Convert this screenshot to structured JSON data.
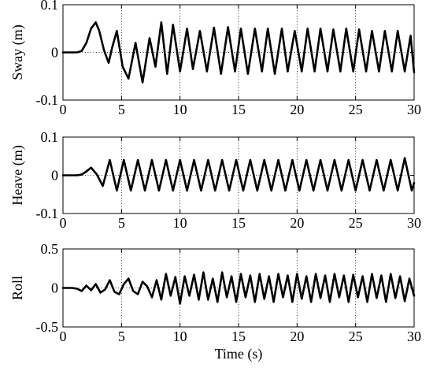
{
  "chart_data": [
    {
      "type": "line",
      "ylabel": "Sway (m)",
      "xlabel": "",
      "xlim": [
        0,
        30
      ],
      "ylim": [
        -0.1,
        0.1
      ],
      "x_ticks": [
        0,
        5,
        10,
        15,
        20,
        25,
        30
      ],
      "x_tick_labels": [
        "0",
        "5",
        "10",
        "15",
        "20",
        "25",
        "30"
      ],
      "y_ticks": [
        -0.1,
        0,
        0.1
      ],
      "y_tick_labels": [
        "-0.1",
        "0",
        "0.1"
      ],
      "grid": true,
      "line_color": "#000000",
      "series": [
        {
          "x": [
            0,
            1.2,
            1.6,
            2.0,
            2.4,
            2.8,
            3.1,
            3.5,
            3.9,
            4.2,
            4.6,
            5.1,
            5.6,
            6.2,
            6.8,
            7.4,
            7.9,
            8.4,
            8.9,
            9.4,
            10.0,
            10.6,
            11.1,
            11.7,
            12.3,
            12.9,
            13.5,
            14.1,
            14.7,
            15.2,
            15.8,
            16.4,
            17.0,
            17.5,
            18.1,
            18.7,
            19.2,
            19.8,
            20.4,
            20.9,
            21.5,
            22.0,
            22.6,
            23.1,
            23.7,
            24.2,
            24.8,
            25.3,
            25.9,
            26.4,
            27.0,
            27.5,
            28.1,
            28.6,
            29.2,
            29.7,
            30.0
          ],
          "values": [
            0,
            0,
            0.003,
            0.02,
            0.05,
            0.063,
            0.045,
            0.005,
            -0.022,
            0.01,
            0.045,
            -0.03,
            -0.055,
            0.02,
            -0.063,
            0.03,
            -0.03,
            0.063,
            -0.045,
            0.058,
            -0.04,
            0.05,
            -0.035,
            0.045,
            -0.04,
            0.052,
            -0.045,
            0.053,
            -0.04,
            0.05,
            -0.045,
            0.05,
            -0.04,
            0.05,
            -0.045,
            0.05,
            -0.04,
            0.045,
            -0.04,
            0.05,
            -0.04,
            0.05,
            -0.04,
            0.048,
            -0.04,
            0.05,
            -0.04,
            0.048,
            -0.04,
            0.045,
            -0.04,
            0.045,
            -0.04,
            0.045,
            -0.04,
            0.035,
            -0.042
          ]
        }
      ]
    },
    {
      "type": "line",
      "ylabel": "Heave (m)",
      "xlabel": "",
      "xlim": [
        0,
        30
      ],
      "ylim": [
        -0.1,
        0.1
      ],
      "x_ticks": [
        0,
        5,
        10,
        15,
        20,
        25,
        30
      ],
      "x_tick_labels": [
        "0",
        "5",
        "10",
        "15",
        "20",
        "25",
        "30"
      ],
      "y_ticks": [
        -0.1,
        0,
        0.1
      ],
      "y_tick_labels": [
        "-0.1",
        "0",
        "0.1"
      ],
      "grid": true,
      "line_color": "#000000",
      "series": [
        {
          "x": [
            0,
            1.2,
            1.6,
            2.0,
            2.4,
            2.9,
            3.4,
            4.0,
            4.6,
            5.2,
            5.8,
            6.4,
            7.0,
            7.6,
            8.2,
            8.8,
            9.4,
            10.0,
            10.6,
            11.2,
            11.8,
            12.4,
            13.0,
            13.6,
            14.2,
            14.8,
            15.4,
            16.0,
            16.6,
            17.2,
            17.8,
            18.4,
            19.0,
            19.6,
            20.2,
            20.8,
            21.4,
            22.0,
            22.6,
            23.2,
            23.8,
            24.4,
            25.0,
            25.6,
            26.2,
            26.8,
            27.4,
            28.0,
            28.6,
            29.2,
            29.8,
            30.0
          ],
          "values": [
            0,
            0,
            0.002,
            0.01,
            0.02,
            0.002,
            -0.028,
            0.04,
            -0.04,
            0.04,
            -0.04,
            0.04,
            -0.04,
            0.04,
            -0.04,
            0.04,
            -0.04,
            0.04,
            -0.04,
            0.04,
            -0.04,
            0.04,
            -0.04,
            0.04,
            -0.04,
            0.04,
            -0.04,
            0.04,
            -0.04,
            0.04,
            -0.04,
            0.04,
            -0.04,
            0.04,
            -0.04,
            0.04,
            -0.04,
            0.04,
            -0.04,
            0.04,
            -0.04,
            0.04,
            -0.04,
            0.04,
            -0.04,
            0.04,
            -0.04,
            0.04,
            -0.04,
            0.045,
            -0.04,
            -0.02
          ]
        }
      ]
    },
    {
      "type": "line",
      "ylabel": "Roll",
      "xlabel": "Time (s)",
      "xlim": [
        0,
        30
      ],
      "ylim": [
        -0.5,
        0.5
      ],
      "x_ticks": [
        0,
        5,
        10,
        15,
        20,
        25,
        30
      ],
      "x_tick_labels": [
        "0",
        "5",
        "10",
        "15",
        "20",
        "25",
        "30"
      ],
      "y_ticks": [
        -0.5,
        0,
        0.5
      ],
      "y_tick_labels": [
        "-0.5",
        "0",
        "0.5"
      ],
      "grid": true,
      "line_color": "#000000",
      "series": [
        {
          "x": [
            0,
            0.8,
            1.2,
            1.6,
            2.0,
            2.4,
            2.8,
            3.2,
            3.6,
            4.0,
            4.4,
            4.8,
            5.2,
            5.6,
            6.0,
            6.4,
            6.8,
            7.2,
            7.6,
            8.0,
            8.4,
            8.8,
            9.2,
            9.6,
            10.0,
            10.4,
            10.8,
            11.2,
            11.6,
            12.0,
            12.4,
            12.8,
            13.2,
            13.6,
            14.0,
            14.4,
            14.8,
            15.2,
            15.6,
            16.0,
            16.4,
            16.8,
            17.2,
            17.6,
            18.0,
            18.4,
            18.8,
            19.2,
            19.6,
            20.0,
            20.4,
            20.8,
            21.2,
            21.6,
            22.0,
            22.4,
            22.8,
            23.2,
            23.6,
            24.0,
            24.4,
            24.8,
            25.2,
            25.6,
            26.0,
            26.4,
            26.8,
            27.2,
            27.6,
            28.0,
            28.4,
            28.8,
            29.2,
            29.6,
            30.0
          ],
          "values": [
            0,
            0,
            -0.01,
            -0.04,
            0.03,
            -0.03,
            0.05,
            -0.06,
            -0.02,
            0.1,
            -0.05,
            -0.08,
            0.05,
            0.12,
            -0.04,
            -0.08,
            0.08,
            0.02,
            -0.12,
            0.1,
            -0.15,
            0.18,
            -0.1,
            0.14,
            -0.2,
            0.15,
            -0.1,
            0.17,
            -0.15,
            0.2,
            -0.15,
            0.12,
            -0.18,
            0.2,
            -0.12,
            0.15,
            -0.18,
            0.18,
            -0.12,
            0.16,
            -0.18,
            0.18,
            -0.14,
            0.15,
            -0.18,
            0.18,
            -0.12,
            0.16,
            -0.18,
            0.18,
            -0.14,
            0.15,
            -0.18,
            0.18,
            -0.13,
            0.16,
            -0.18,
            0.18,
            -0.12,
            0.16,
            -0.18,
            0.17,
            -0.12,
            0.15,
            -0.18,
            0.18,
            -0.13,
            0.16,
            -0.18,
            0.18,
            -0.13,
            0.15,
            -0.17,
            0.12,
            -0.1
          ]
        }
      ]
    }
  ]
}
